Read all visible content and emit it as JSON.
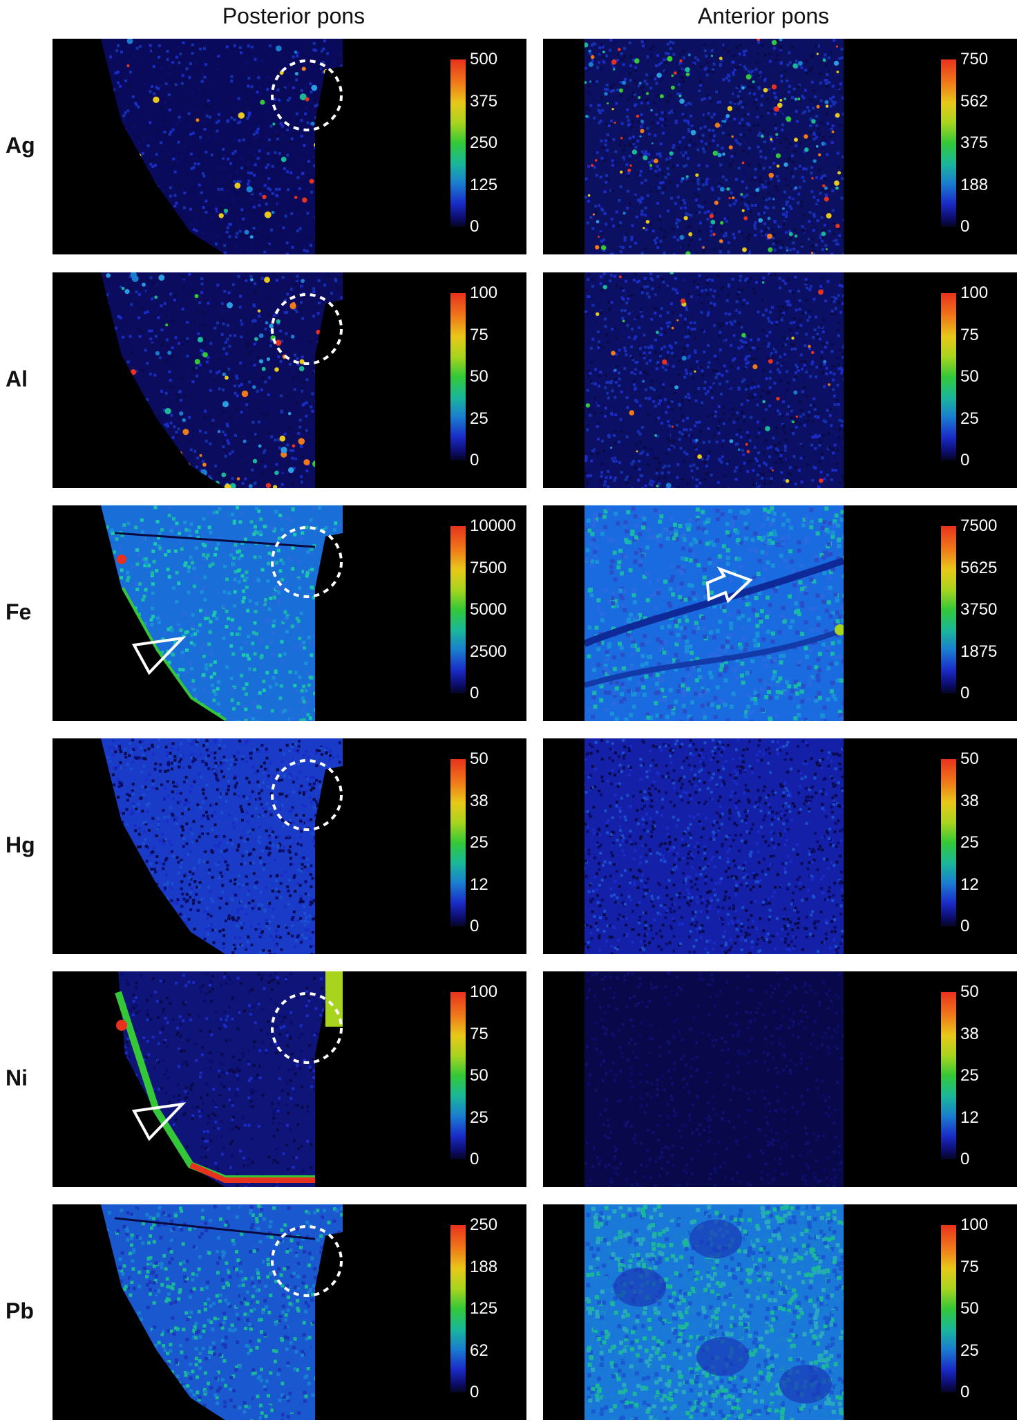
{
  "columns": [
    {
      "title": "Posterior pons"
    },
    {
      "title": "Anterior pons"
    }
  ],
  "rows": [
    {
      "element": "Ag",
      "posterior": {
        "ticks": [
          "500",
          "375",
          "250",
          "125",
          "0"
        ],
        "map": "posterior-ag",
        "markers": [
          "dashed-circle"
        ]
      },
      "anterior": {
        "ticks": [
          "750",
          "562",
          "375",
          "188",
          "0"
        ],
        "map": "anterior-ag",
        "markers": []
      }
    },
    {
      "element": "Al",
      "posterior": {
        "ticks": [
          "100",
          "75",
          "50",
          "25",
          "0"
        ],
        "map": "posterior-al",
        "markers": [
          "dashed-circle"
        ]
      },
      "anterior": {
        "ticks": [
          "100",
          "75",
          "50",
          "25",
          "0"
        ],
        "map": "anterior-al",
        "markers": []
      }
    },
    {
      "element": "Fe",
      "posterior": {
        "ticks": [
          "10000",
          "7500",
          "5000",
          "2500",
          "0"
        ],
        "map": "posterior-fe",
        "markers": [
          "dashed-circle",
          "arrowhead"
        ]
      },
      "anterior": {
        "ticks": [
          "7500",
          "5625",
          "3750",
          "1875",
          "0"
        ],
        "map": "anterior-fe",
        "markers": [
          "arrow"
        ]
      }
    },
    {
      "element": "Hg",
      "posterior": {
        "ticks": [
          "50",
          "38",
          "25",
          "12",
          "0"
        ],
        "map": "posterior-hg",
        "markers": [
          "dashed-circle"
        ]
      },
      "anterior": {
        "ticks": [
          "50",
          "38",
          "25",
          "12",
          "0"
        ],
        "map": "anterior-hg",
        "markers": []
      }
    },
    {
      "element": "Ni",
      "posterior": {
        "ticks": [
          "100",
          "75",
          "50",
          "25",
          "0"
        ],
        "map": "posterior-ni",
        "markers": [
          "dashed-circle",
          "arrowhead"
        ]
      },
      "anterior": {
        "ticks": [
          "50",
          "38",
          "25",
          "12",
          "0"
        ],
        "map": "anterior-ni",
        "markers": []
      }
    },
    {
      "element": "Pb",
      "posterior": {
        "ticks": [
          "250",
          "188",
          "125",
          "62",
          "0"
        ],
        "map": "posterior-pb",
        "markers": [
          "dashed-circle"
        ]
      },
      "anterior": {
        "ticks": [
          "100",
          "75",
          "50",
          "25",
          "0"
        ],
        "map": "anterior-pb",
        "markers": []
      }
    }
  ],
  "colors": {
    "background": "#ffffff",
    "panel": "#000000",
    "colormap": [
      "#0c0c6a",
      "#1a2cc8",
      "#1a7ed0",
      "#1ab898",
      "#34c838",
      "#a8d41e",
      "#e8c81a",
      "#f07a1a",
      "#e8321e"
    ],
    "marker": "#ffffff"
  }
}
